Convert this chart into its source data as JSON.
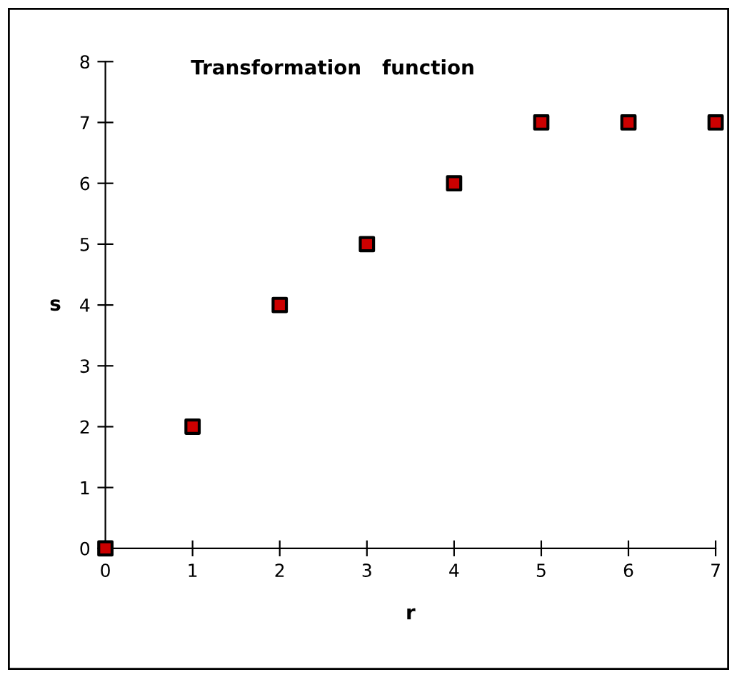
{
  "chart_data": {
    "type": "scatter",
    "title": "Transformation   function",
    "xlabel": "r",
    "ylabel": "s",
    "x": [
      0,
      1,
      2,
      3,
      4,
      5,
      6,
      7
    ],
    "series": [
      {
        "color": "#cc0000",
        "values": [
          0,
          2,
          4,
          5,
          6,
          7,
          7,
          7
        ]
      }
    ],
    "xlim": [
      0,
      7
    ],
    "xticks": [
      0,
      1,
      2,
      3,
      4,
      5,
      6,
      7
    ],
    "ylim": [
      0,
      8
    ],
    "yticks": [
      0,
      1,
      2,
      3,
      4,
      5,
      6,
      7,
      8
    ],
    "marker": "square",
    "grid": false,
    "legend": false
  }
}
